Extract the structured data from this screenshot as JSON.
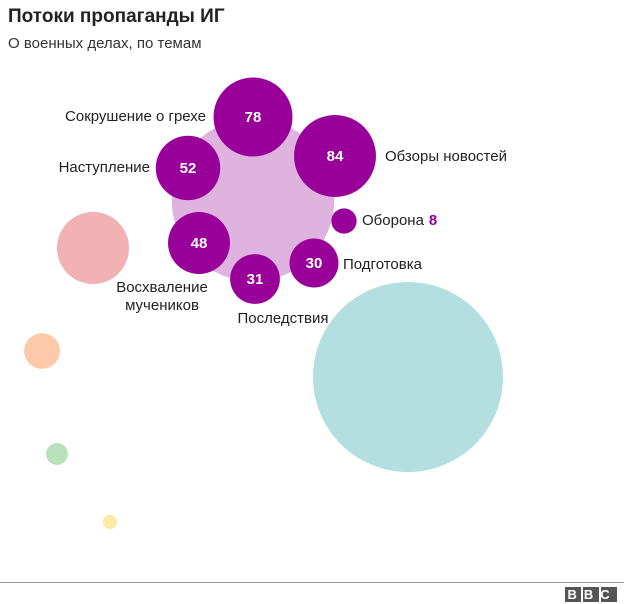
{
  "chart_data": {
    "type": "bubble",
    "title": "Потоки пропаганды ИГ",
    "subtitle": "О военных делах, по темам",
    "categories": [
      "Сокрушение о грехе",
      "Обзоры новостей",
      "Наступление",
      "Восхваление мучеников",
      "Последствия",
      "Подготовка",
      "Оборона"
    ],
    "values": [
      78,
      84,
      52,
      48,
      31,
      30,
      8
    ],
    "color": "#990099",
    "total_color": "#dfb3df",
    "other_bubbles": [
      {
        "color": "#b3dfe0",
        "value": 452
      },
      {
        "color": "#f0b2b2",
        "value": 65
      },
      {
        "color": "#fdc9a9",
        "value": 16
      },
      {
        "color": "#b9e1bb",
        "value": 6
      },
      {
        "color": "#fbeaa3",
        "value": 2.5
      }
    ],
    "source": "BBC"
  }
}
